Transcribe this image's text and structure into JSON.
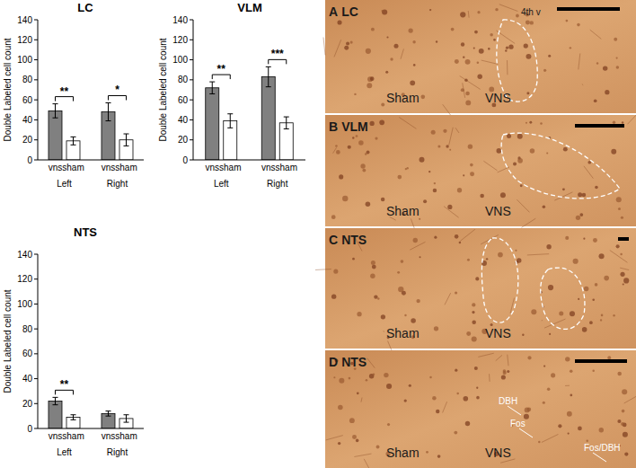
{
  "chart_data": [
    {
      "type": "bar",
      "title": "LC",
      "y_label": "Double Labeled cell count",
      "categories": [
        "Left",
        "Right"
      ],
      "series": [
        {
          "name": "vns",
          "color": "#808080",
          "values": [
            49,
            48
          ],
          "errors": [
            7,
            9
          ]
        },
        {
          "name": "sham",
          "color": "#ffffff",
          "values": [
            19,
            20
          ],
          "errors": [
            4,
            6
          ]
        }
      ],
      "annotations": [
        "**",
        "*"
      ],
      "ylim": [
        0,
        140
      ],
      "yticks": [
        0,
        20,
        40,
        60,
        80,
        100,
        120,
        140
      ],
      "grid": false
    },
    {
      "type": "bar",
      "title": "VLM",
      "y_label": "Double Labeled cell count",
      "categories": [
        "Left",
        "Right"
      ],
      "series": [
        {
          "name": "vns",
          "color": "#808080",
          "values": [
            72,
            83
          ],
          "errors": [
            6,
            10
          ]
        },
        {
          "name": "sham",
          "color": "#ffffff",
          "values": [
            39,
            37
          ],
          "errors": [
            7,
            6
          ]
        }
      ],
      "annotations": [
        "**",
        "***"
      ],
      "ylim": [
        0,
        140
      ],
      "yticks": [
        0,
        20,
        40,
        60,
        80,
        100,
        120,
        140
      ],
      "grid": false
    },
    {
      "type": "bar",
      "title": "NTS",
      "y_label": "Double Labeled cell count",
      "categories": [
        "Left",
        "Right"
      ],
      "series": [
        {
          "name": "vns",
          "color": "#808080",
          "values": [
            22,
            12
          ],
          "errors": [
            3,
            2
          ]
        },
        {
          "name": "sham",
          "color": "#ffffff",
          "values": [
            9,
            8
          ],
          "errors": [
            2,
            3
          ]
        }
      ],
      "annotations": [
        "**",
        null
      ],
      "ylim": [
        0,
        140
      ],
      "yticks": [
        0,
        20,
        40,
        60,
        80,
        100,
        120,
        140
      ],
      "grid": false
    }
  ],
  "panels": [
    {
      "letter": "A",
      "region": "LC",
      "labels": [
        "Sham",
        "VNS"
      ],
      "notes": [
        "4th v"
      ]
    },
    {
      "letter": "B",
      "region": "VLM",
      "labels": [
        "Sham",
        "VNS"
      ],
      "notes": []
    },
    {
      "letter": "C",
      "region": "NTS",
      "labels": [
        "Sham",
        "VNS"
      ],
      "notes": []
    },
    {
      "letter": "D",
      "region": "NTS",
      "labels": [
        "Sham",
        "VNS"
      ],
      "notes": [
        "DBH",
        "Fos",
        "Fos/DBH"
      ]
    }
  ]
}
